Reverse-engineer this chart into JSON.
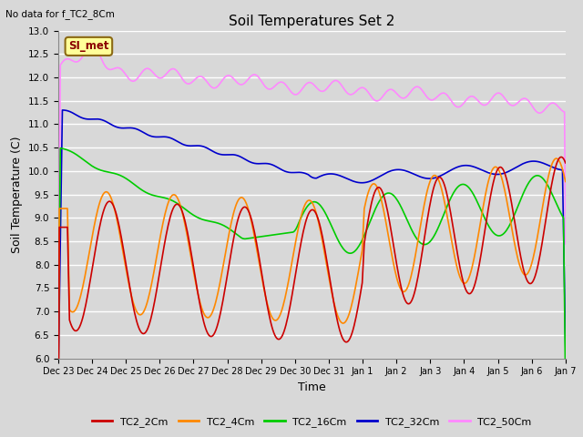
{
  "title": "Soil Temperatures Set 2",
  "top_left_text": "No data for f_TC2_8Cm",
  "xlabel": "Time",
  "ylabel": "Soil Temperature (C)",
  "ylim": [
    6.0,
    13.0
  ],
  "yticks": [
    6.0,
    6.5,
    7.0,
    7.5,
    8.0,
    8.5,
    9.0,
    9.5,
    10.0,
    10.5,
    11.0,
    11.5,
    12.0,
    12.5,
    13.0
  ],
  "xtick_labels": [
    "Dec 23",
    "Dec 24",
    "Dec 25",
    "Dec 26",
    "Dec 27",
    "Dec 28",
    "Dec 29",
    "Dec 30",
    "Dec 31",
    "Jan 1",
    "Jan 2",
    "Jan 3",
    "Jan 4",
    "Jan 5",
    "Jan 6",
    "Jan 7"
  ],
  "bg_color": "#d8d8d8",
  "plot_bg_color": "#d8d8d8",
  "grid_color": "#ffffff",
  "annotation_box": {
    "text": "SI_met",
    "bg": "#ffff99",
    "border": "#8b6914",
    "text_color": "#8b0000"
  },
  "series": {
    "TC2_2Cm": {
      "color": "#cc0000",
      "lw": 1.2
    },
    "TC2_4Cm": {
      "color": "#ff8800",
      "lw": 1.2
    },
    "TC2_16Cm": {
      "color": "#00cc00",
      "lw": 1.2
    },
    "TC2_32Cm": {
      "color": "#0000cc",
      "lw": 1.2
    },
    "TC2_50Cm": {
      "color": "#ff88ff",
      "lw": 1.2
    }
  },
  "n_points": 500
}
